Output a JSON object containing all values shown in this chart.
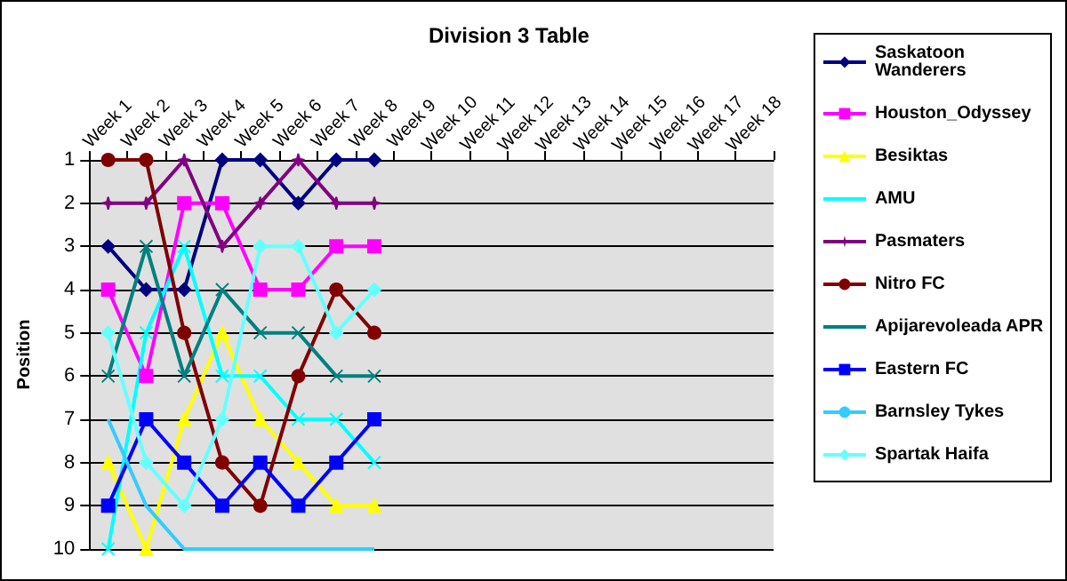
{
  "chart_data": {
    "type": "line",
    "title": "Division 3 Table",
    "ylabel": "Position",
    "categories": [
      "Week 1",
      "Week 2",
      "Week 3",
      "Week 4",
      "Week 5",
      "Week 6",
      "Week 7",
      "Week 8",
      "Week 9",
      "Week 10",
      "Week 11",
      "Week 12",
      "Week 13",
      "Week 14",
      "Week 15",
      "Week 16",
      "Week 17",
      "Week 18"
    ],
    "ylim": [
      10,
      1
    ],
    "yticks": [
      1,
      2,
      3,
      4,
      5,
      6,
      7,
      8,
      9,
      10
    ],
    "grid": "y",
    "legend": "right",
    "series": [
      {
        "name": "Saskatoon Wanderers",
        "color": "#000080",
        "marker": "diamond",
        "values": [
          3,
          4,
          4,
          1,
          1,
          2,
          1,
          1,
          null,
          null,
          null,
          null,
          null,
          null,
          null,
          null,
          null,
          null
        ]
      },
      {
        "name": "Houston_Odyssey",
        "color": "#ff00ff",
        "marker": "square",
        "values": [
          4,
          6,
          2,
          2,
          4,
          4,
          3,
          3,
          null,
          null,
          null,
          null,
          null,
          null,
          null,
          null,
          null,
          null
        ]
      },
      {
        "name": "Besiktas",
        "color": "#ffff00",
        "marker": "triangle",
        "values": [
          8,
          10,
          7,
          5,
          7,
          8,
          9,
          9,
          null,
          null,
          null,
          null,
          null,
          null,
          null,
          null,
          null,
          null
        ]
      },
      {
        "name": "AMU",
        "color": "#00ffff",
        "marker": "cross",
        "values": [
          10,
          5,
          3,
          6,
          6,
          7,
          7,
          8,
          null,
          null,
          null,
          null,
          null,
          null,
          null,
          null,
          null,
          null
        ]
      },
      {
        "name": "Pasmaters",
        "color": "#800080",
        "marker": "star",
        "values": [
          2,
          2,
          1,
          3,
          2,
          1,
          2,
          2,
          null,
          null,
          null,
          null,
          null,
          null,
          null,
          null,
          null,
          null
        ]
      },
      {
        "name": "Nitro FC",
        "color": "#800000",
        "marker": "circle",
        "values": [
          1,
          1,
          5,
          8,
          9,
          6,
          4,
          5,
          null,
          null,
          null,
          null,
          null,
          null,
          null,
          null,
          null,
          null
        ]
      },
      {
        "name": "Apijarevoleada APR",
        "color": "#008080",
        "marker": "cross",
        "values": [
          6,
          3,
          6,
          4,
          5,
          5,
          6,
          6,
          null,
          null,
          null,
          null,
          null,
          null,
          null,
          null,
          null,
          null
        ]
      },
      {
        "name": "Eastern FC",
        "color": "#0000ff",
        "marker": "square",
        "values": [
          9,
          7,
          8,
          9,
          8,
          9,
          8,
          7,
          null,
          null,
          null,
          null,
          null,
          null,
          null,
          null,
          null,
          null
        ]
      },
      {
        "name": "Barnsley Tykes",
        "color": "#33ccff",
        "marker": "none",
        "values": [
          7,
          9,
          10,
          10,
          10,
          10,
          10,
          10,
          null,
          null,
          null,
          null,
          null,
          null,
          null,
          null,
          null,
          null
        ]
      },
      {
        "name": "Spartak Haifa",
        "color": "#66ffff",
        "marker": "diamond",
        "values": [
          5,
          8,
          9,
          7,
          3,
          3,
          5,
          4,
          null,
          null,
          null,
          null,
          null,
          null,
          null,
          null,
          null,
          null
        ]
      }
    ]
  }
}
